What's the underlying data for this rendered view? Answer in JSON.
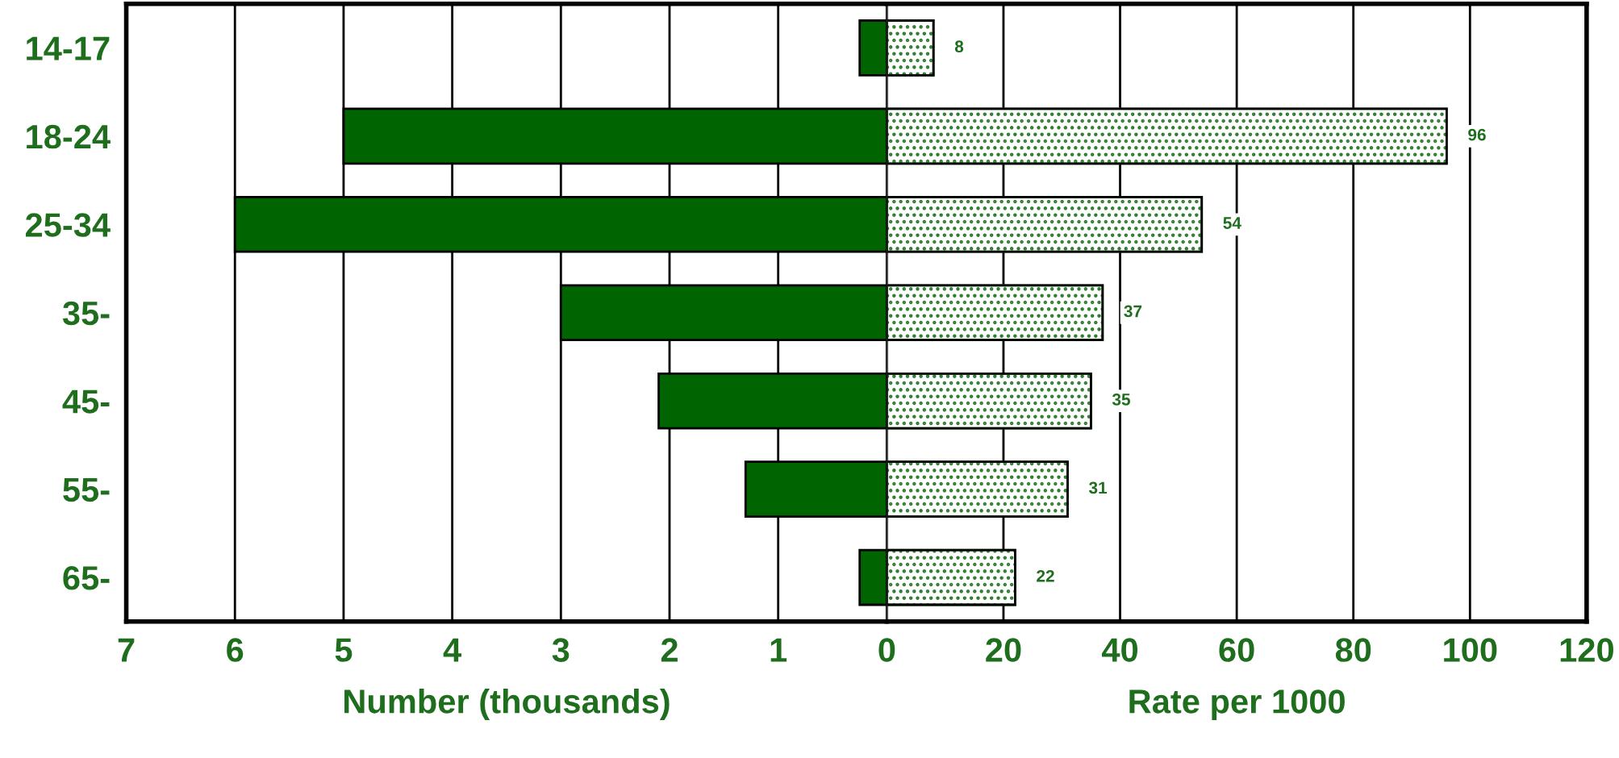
{
  "chart_data": [
    {
      "type": "bar",
      "orientation": "horizontal",
      "categories": [
        "14-17",
        "18-24",
        "25-34",
        "35-",
        "45-",
        "55-",
        "65-"
      ],
      "series": [
        {
          "color": "#006400",
          "values": [
            0.25,
            5,
            6,
            3,
            2.1,
            1.3,
            0.25
          ]
        }
      ],
      "xlim": [
        7,
        0
      ],
      "xticks": [
        7,
        6,
        5,
        4,
        3,
        2,
        1,
        0
      ],
      "xlabel": "Number (thousands)",
      "grid": "x"
    },
    {
      "type": "bar",
      "orientation": "horizontal",
      "series": [
        {
          "color": "#2e7d2e",
          "values": [
            8,
            96,
            54,
            37,
            35,
            31,
            22
          ],
          "value_labels": [
            "8",
            "96",
            "54",
            "37",
            "35",
            "31",
            "22"
          ]
        }
      ],
      "xlim": [
        0,
        120
      ],
      "xticks": [
        {
          "value": 0,
          "label": null
        },
        20,
        40,
        60,
        80,
        100,
        120
      ],
      "xlabel": "Rate per 1000",
      "grid": "x",
      "tick_labels": "x"
    }
  ]
}
